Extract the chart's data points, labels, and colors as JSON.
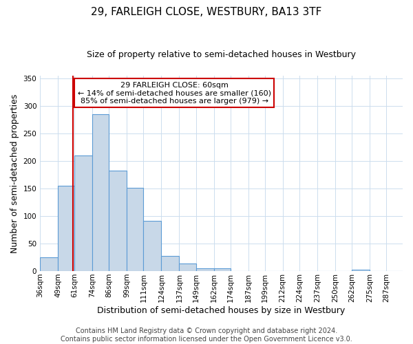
{
  "title": "29, FARLEIGH CLOSE, WESTBURY, BA13 3TF",
  "subtitle": "Size of property relative to semi-detached houses in Westbury",
  "xlabel": "Distribution of semi-detached houses by size in Westbury",
  "ylabel": "Number of semi-detached properties",
  "footer_line1": "Contains HM Land Registry data © Crown copyright and database right 2024.",
  "footer_line2": "Contains public sector information licensed under the Open Government Licence v3.0.",
  "annotation_line1": "29 FARLEIGH CLOSE: 60sqm",
  "annotation_line2": "← 14% of semi-detached houses are smaller (160)",
  "annotation_line3": "85% of semi-detached houses are larger (979) →",
  "property_size_sqm": 60,
  "bar_edges": [
    36,
    49,
    61,
    74,
    86,
    99,
    111,
    124,
    137,
    149,
    162,
    174,
    187,
    199,
    212,
    224,
    237,
    250,
    262,
    275,
    287
  ],
  "bar_heights": [
    25,
    155,
    210,
    285,
    183,
    152,
    91,
    27,
    14,
    5,
    5,
    0,
    0,
    0,
    0,
    0,
    0,
    0,
    2,
    0,
    0
  ],
  "bar_labels": [
    "36sqm",
    "49sqm",
    "61sqm",
    "74sqm",
    "86sqm",
    "99sqm",
    "111sqm",
    "124sqm",
    "137sqm",
    "149sqm",
    "162sqm",
    "174sqm",
    "187sqm",
    "199sqm",
    "212sqm",
    "224sqm",
    "237sqm",
    "250sqm",
    "262sqm",
    "275sqm",
    "287sqm"
  ],
  "bar_color": "#c8d8e8",
  "bar_edge_color": "#5b9bd5",
  "vline_x": 60,
  "vline_color": "#cc0000",
  "annotation_box_edge_color": "#cc0000",
  "ylim": [
    0,
    355
  ],
  "yticks": [
    0,
    50,
    100,
    150,
    200,
    250,
    300,
    350
  ],
  "background_color": "#ffffff",
  "grid_color": "#ccddee",
  "title_fontsize": 11,
  "subtitle_fontsize": 9,
  "axis_label_fontsize": 9,
  "tick_fontsize": 7.5,
  "annotation_fontsize": 8,
  "footer_fontsize": 7
}
